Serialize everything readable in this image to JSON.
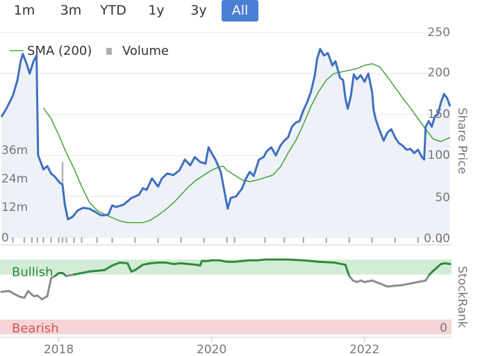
{
  "range_buttons": [
    {
      "label": "1m",
      "active": false
    },
    {
      "label": "3m",
      "active": false
    },
    {
      "label": "YTD",
      "active": false
    },
    {
      "label": "1y",
      "active": false
    },
    {
      "label": "3y",
      "active": false
    },
    {
      "label": "All",
      "active": true
    }
  ],
  "colors": {
    "price": "#3f6fbf",
    "sma": "#4aa83c",
    "volume": "#b0b0b0",
    "rank_neutral": "#8c8c8c",
    "rank_bull": "#2e8b3a",
    "rank_bear": "#d9534f",
    "bull_band": "#d3ecd7",
    "bear_band": "#f5d5d7",
    "accent": "#4a7fd4"
  },
  "chart_data": [
    {
      "type": "line",
      "legend": {
        "sma_label": "SMA (200)",
        "volume_label": "Volume",
        "placement": "top-left"
      },
      "ylabel": "Share Price",
      "y_ticks": [
        "250",
        "200",
        "150",
        "100",
        "50",
        "0.00"
      ],
      "volume_ticks": [
        "36m",
        "24m",
        "12m",
        "0"
      ],
      "x_ticks": [
        "2018",
        "2020",
        "2022"
      ],
      "ylim": [
        0,
        250
      ],
      "volume_ylim": [
        0,
        50
      ],
      "series": [
        {
          "name": "Share Price",
          "points": [
            [
              2017.25,
              147
            ],
            [
              2017.32,
              158
            ],
            [
              2017.4,
              173
            ],
            [
              2017.46,
              192
            ],
            [
              2017.5,
              214
            ],
            [
              2017.53,
              224
            ],
            [
              2017.58,
              212
            ],
            [
              2017.62,
              200
            ],
            [
              2017.67,
              215
            ],
            [
              2017.71,
              222
            ],
            [
              2017.73,
              100
            ],
            [
              2017.76,
              93
            ],
            [
              2017.8,
              83
            ],
            [
              2017.85,
              87
            ],
            [
              2017.9,
              78
            ],
            [
              2017.95,
              74
            ],
            [
              2018.0,
              68
            ],
            [
              2018.05,
              64
            ],
            [
              2018.08,
              40
            ],
            [
              2018.12,
              22
            ],
            [
              2018.18,
              25
            ],
            [
              2018.25,
              33
            ],
            [
              2018.32,
              36
            ],
            [
              2018.4,
              35
            ],
            [
              2018.48,
              31
            ],
            [
              2018.55,
              27
            ],
            [
              2018.6,
              27
            ],
            [
              2018.65,
              28
            ],
            [
              2018.7,
              39
            ],
            [
              2018.75,
              37
            ],
            [
              2018.85,
              40
            ],
            [
              2018.95,
              48
            ],
            [
              2019.05,
              52
            ],
            [
              2019.1,
              60
            ],
            [
              2019.15,
              58
            ],
            [
              2019.22,
              72
            ],
            [
              2019.3,
              62
            ],
            [
              2019.35,
              72
            ],
            [
              2019.42,
              78
            ],
            [
              2019.5,
              76
            ],
            [
              2019.58,
              82
            ],
            [
              2019.65,
              95
            ],
            [
              2019.72,
              88
            ],
            [
              2019.78,
              98
            ],
            [
              2019.85,
              92
            ],
            [
              2019.92,
              90
            ],
            [
              2019.96,
              110
            ],
            [
              2020.0,
              103
            ],
            [
              2020.05,
              95
            ],
            [
              2020.12,
              80
            ],
            [
              2020.18,
              50
            ],
            [
              2020.21,
              35
            ],
            [
              2020.25,
              48
            ],
            [
              2020.32,
              50
            ],
            [
              2020.4,
              60
            ],
            [
              2020.45,
              72
            ],
            [
              2020.5,
              80
            ],
            [
              2020.55,
              75
            ],
            [
              2020.62,
              95
            ],
            [
              2020.68,
              98
            ],
            [
              2020.72,
              105
            ],
            [
              2020.78,
              110
            ],
            [
              2020.84,
              100
            ],
            [
              2020.9,
              112
            ],
            [
              2020.95,
              118
            ],
            [
              2021.0,
              122
            ],
            [
              2021.05,
              135
            ],
            [
              2021.1,
              140
            ],
            [
              2021.15,
              142
            ],
            [
              2021.2,
              155
            ],
            [
              2021.25,
              165
            ],
            [
              2021.3,
              178
            ],
            [
              2021.35,
              198
            ],
            [
              2021.38,
              218
            ],
            [
              2021.42,
              230
            ],
            [
              2021.47,
              222
            ],
            [
              2021.52,
              225
            ],
            [
              2021.58,
              210
            ],
            [
              2021.62,
              215
            ],
            [
              2021.68,
              195
            ],
            [
              2021.72,
              192
            ],
            [
              2021.75,
              170
            ],
            [
              2021.78,
              157
            ],
            [
              2021.82,
              172
            ],
            [
              2021.86,
              199
            ],
            [
              2021.9,
              193
            ],
            [
              2021.95,
              198
            ],
            [
              2022.0,
              190
            ],
            [
              2022.05,
              200
            ],
            [
              2022.1,
              177
            ],
            [
              2022.12,
              155
            ],
            [
              2022.15,
              143
            ],
            [
              2022.2,
              130
            ],
            [
              2022.25,
              118
            ],
            [
              2022.3,
              128
            ],
            [
              2022.35,
              132
            ],
            [
              2022.4,
              122
            ],
            [
              2022.45,
              115
            ],
            [
              2022.5,
              112
            ],
            [
              2022.55,
              107
            ],
            [
              2022.6,
              108
            ],
            [
              2022.65,
              103
            ],
            [
              2022.7,
              107
            ],
            [
              2022.75,
              98
            ],
            [
              2022.78,
              95
            ],
            [
              2022.8,
              135
            ],
            [
              2022.84,
              142
            ],
            [
              2022.88,
              135
            ],
            [
              2022.92,
              148
            ],
            [
              2022.96,
              150
            ],
            [
              2023.0,
              165
            ],
            [
              2023.04,
              175
            ],
            [
              2023.08,
              170
            ],
            [
              2023.12,
              160
            ]
          ]
        },
        {
          "name": "SMA (200)",
          "points": [
            [
              2017.8,
              158
            ],
            [
              2017.9,
              145
            ],
            [
              2018.0,
              125
            ],
            [
              2018.1,
              103
            ],
            [
              2018.2,
              84
            ],
            [
              2018.3,
              62
            ],
            [
              2018.4,
              43
            ],
            [
              2018.5,
              33
            ],
            [
              2018.6,
              28
            ],
            [
              2018.7,
              24
            ],
            [
              2018.8,
              20
            ],
            [
              2018.9,
              18
            ],
            [
              2019.0,
              18
            ],
            [
              2019.1,
              18
            ],
            [
              2019.2,
              21
            ],
            [
              2019.3,
              27
            ],
            [
              2019.4,
              34
            ],
            [
              2019.5,
              42
            ],
            [
              2019.6,
              52
            ],
            [
              2019.7,
              62
            ],
            [
              2019.8,
              70
            ],
            [
              2019.9,
              76
            ],
            [
              2020.0,
              82
            ],
            [
              2020.1,
              86
            ],
            [
              2020.15,
              87
            ],
            [
              2020.2,
              82
            ],
            [
              2020.3,
              76
            ],
            [
              2020.4,
              70
            ],
            [
              2020.5,
              68
            ],
            [
              2020.6,
              70
            ],
            [
              2020.7,
              73
            ],
            [
              2020.8,
              76
            ],
            [
              2020.9,
              86
            ],
            [
              2021.0,
              103
            ],
            [
              2021.1,
              118
            ],
            [
              2021.2,
              138
            ],
            [
              2021.3,
              160
            ],
            [
              2021.4,
              178
            ],
            [
              2021.5,
              192
            ],
            [
              2021.6,
              200
            ],
            [
              2021.7,
              202
            ],
            [
              2021.8,
              204
            ],
            [
              2021.9,
              206
            ],
            [
              2022.0,
              210
            ],
            [
              2022.1,
              212
            ],
            [
              2022.2,
              208
            ],
            [
              2022.3,
              196
            ],
            [
              2022.4,
              183
            ],
            [
              2022.5,
              170
            ],
            [
              2022.6,
              158
            ],
            [
              2022.7,
              145
            ],
            [
              2022.8,
              132
            ],
            [
              2022.9,
              120
            ],
            [
              2023.0,
              117
            ],
            [
              2023.12,
              122
            ]
          ]
        }
      ],
      "volume": [
        [
          2017.4,
          3
        ],
        [
          2017.55,
          4
        ],
        [
          2017.65,
          34
        ],
        [
          2017.72,
          5
        ],
        [
          2017.8,
          3
        ],
        [
          2017.9,
          4
        ],
        [
          2018.0,
          5
        ],
        [
          2018.05,
          32
        ],
        [
          2018.1,
          6
        ],
        [
          2018.2,
          4
        ],
        [
          2018.3,
          3
        ],
        [
          2018.5,
          3
        ],
        [
          2018.7,
          2
        ],
        [
          2019.0,
          3
        ],
        [
          2019.3,
          2
        ],
        [
          2019.6,
          3
        ],
        [
          2019.9,
          2
        ],
        [
          2020.2,
          6
        ],
        [
          2020.3,
          3
        ],
        [
          2020.7,
          4
        ],
        [
          2020.95,
          5
        ],
        [
          2021.2,
          3
        ],
        [
          2021.5,
          2
        ],
        [
          2021.8,
          6
        ],
        [
          2022.1,
          3
        ],
        [
          2022.4,
          2
        ],
        [
          2022.7,
          3
        ],
        [
          2023.0,
          5
        ]
      ]
    },
    {
      "type": "line",
      "ylabel": "StockRank",
      "bands": {
        "bull_label": "Bullish",
        "bear_label": "Bearish",
        "bull_range": [
          80,
          100
        ],
        "bear_range": [
          0,
          20
        ]
      },
      "y_ticks": [
        "0"
      ],
      "ylim": [
        0,
        100
      ],
      "series": [
        {
          "name": "StockRank",
          "points": [
            [
              2017.25,
              57
            ],
            [
              2017.35,
              58
            ],
            [
              2017.42,
              54
            ],
            [
              2017.5,
              50
            ],
            [
              2017.55,
              49
            ],
            [
              2017.6,
              58
            ],
            [
              2017.65,
              53
            ],
            [
              2017.68,
              51
            ],
            [
              2017.72,
              52
            ],
            [
              2017.78,
              47
            ],
            [
              2017.85,
              51
            ],
            [
              2017.9,
              75
            ],
            [
              2017.95,
              78
            ],
            [
              2018.0,
              82
            ],
            [
              2018.05,
              82
            ],
            [
              2018.1,
              78
            ],
            [
              2018.2,
              80
            ],
            [
              2018.3,
              82
            ],
            [
              2018.4,
              84
            ],
            [
              2018.5,
              85
            ],
            [
              2018.6,
              86
            ],
            [
              2018.7,
              92
            ],
            [
              2018.8,
              96
            ],
            [
              2018.9,
              95
            ],
            [
              2018.95,
              84
            ],
            [
              2019.0,
              86
            ],
            [
              2019.1,
              93
            ],
            [
              2019.2,
              95
            ],
            [
              2019.3,
              96
            ],
            [
              2019.4,
              96
            ],
            [
              2019.5,
              94
            ],
            [
              2019.6,
              95
            ],
            [
              2019.7,
              94
            ],
            [
              2019.8,
              93
            ],
            [
              2019.85,
              92
            ],
            [
              2019.87,
              98
            ],
            [
              2019.95,
              98
            ],
            [
              2020.0,
              99
            ],
            [
              2020.1,
              99
            ],
            [
              2020.2,
              97
            ],
            [
              2020.3,
              97
            ],
            [
              2020.4,
              98
            ],
            [
              2020.5,
              99
            ],
            [
              2020.6,
              99
            ],
            [
              2020.7,
              100
            ],
            [
              2020.8,
              100
            ],
            [
              2020.9,
              100
            ],
            [
              2021.0,
              100
            ],
            [
              2021.2,
              99
            ],
            [
              2021.4,
              97
            ],
            [
              2021.6,
              96
            ],
            [
              2021.75,
              93
            ],
            [
              2021.8,
              78
            ],
            [
              2021.85,
              72
            ],
            [
              2021.9,
              70
            ],
            [
              2021.95,
              72
            ],
            [
              2022.0,
              70
            ],
            [
              2022.1,
              72
            ],
            [
              2022.15,
              70
            ],
            [
              2022.2,
              68
            ],
            [
              2022.3,
              64
            ],
            [
              2022.4,
              65
            ],
            [
              2022.5,
              66
            ],
            [
              2022.6,
              68
            ],
            [
              2022.7,
              70
            ],
            [
              2022.8,
              72
            ],
            [
              2022.85,
              80
            ],
            [
              2022.9,
              85
            ],
            [
              2023.0,
              94
            ],
            [
              2023.05,
              95
            ],
            [
              2023.12,
              94
            ]
          ]
        }
      ]
    }
  ]
}
